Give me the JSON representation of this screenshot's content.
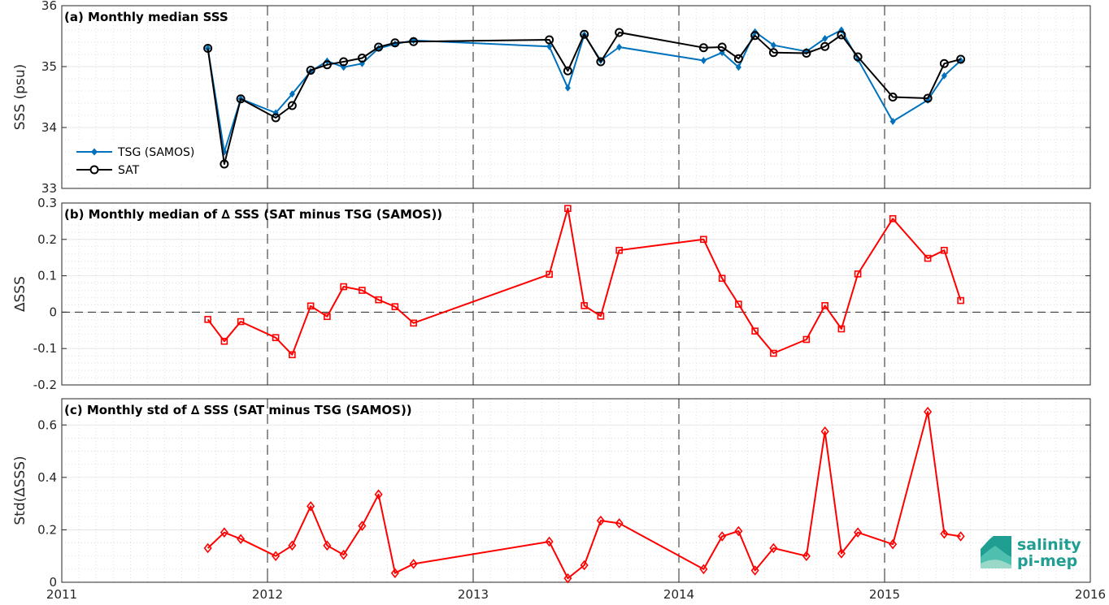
{
  "chart_data": [
    {
      "type": "line",
      "title": "(a) Monthly median SSS",
      "ylabel": "SSS (psu)",
      "xlim": [
        2011,
        2016
      ],
      "ylim": [
        33,
        36
      ],
      "yticks": [
        "33",
        "34",
        "35",
        "36"
      ],
      "grid": true,
      "legend_position": "lower-left",
      "series": [
        {
          "name": "TSG (SAMOS)",
          "color": "#0072bd",
          "marker": "diamond-filled",
          "points": [
            [
              2011.71,
              35.3
            ],
            [
              2011.79,
              33.6
            ],
            [
              2011.87,
              34.47
            ],
            [
              2012.04,
              34.24
            ],
            [
              2012.12,
              34.55
            ],
            [
              2012.21,
              34.92
            ],
            [
              2012.29,
              35.09
            ],
            [
              2012.37,
              34.99
            ],
            [
              2012.46,
              35.05
            ],
            [
              2012.54,
              35.3
            ],
            [
              2012.62,
              35.37
            ],
            [
              2012.71,
              35.43
            ],
            [
              2013.37,
              35.33
            ],
            [
              2013.46,
              34.65
            ],
            [
              2013.54,
              35.52
            ],
            [
              2013.62,
              35.1
            ],
            [
              2013.71,
              35.32
            ],
            [
              2014.12,
              35.1
            ],
            [
              2014.21,
              35.23
            ],
            [
              2014.29,
              34.99
            ],
            [
              2014.37,
              35.57
            ],
            [
              2014.46,
              35.35
            ],
            [
              2014.62,
              35.25
            ],
            [
              2014.71,
              35.46
            ],
            [
              2014.79,
              35.6
            ],
            [
              2014.87,
              35.12
            ],
            [
              2015.04,
              34.1
            ],
            [
              2015.21,
              34.45
            ],
            [
              2015.29,
              34.85
            ],
            [
              2015.37,
              35.1
            ]
          ]
        },
        {
          "name": "SAT",
          "color": "#000000",
          "marker": "circle-open",
          "points": [
            [
              2011.71,
              35.3
            ],
            [
              2011.79,
              33.4
            ],
            [
              2011.87,
              34.47
            ],
            [
              2012.04,
              34.16
            ],
            [
              2012.12,
              34.36
            ],
            [
              2012.21,
              34.94
            ],
            [
              2012.29,
              35.03
            ],
            [
              2012.37,
              35.08
            ],
            [
              2012.46,
              35.14
            ],
            [
              2012.54,
              35.32
            ],
            [
              2012.62,
              35.39
            ],
            [
              2012.71,
              35.41
            ],
            [
              2013.37,
              35.44
            ],
            [
              2013.46,
              34.93
            ],
            [
              2013.54,
              35.53
            ],
            [
              2013.62,
              35.08
            ],
            [
              2013.71,
              35.56
            ],
            [
              2014.12,
              35.31
            ],
            [
              2014.21,
              35.32
            ],
            [
              2014.29,
              35.13
            ],
            [
              2014.37,
              35.51
            ],
            [
              2014.46,
              35.23
            ],
            [
              2014.62,
              35.22
            ],
            [
              2014.71,
              35.33
            ],
            [
              2014.79,
              35.52
            ],
            [
              2014.87,
              35.16
            ],
            [
              2015.04,
              34.5
            ],
            [
              2015.21,
              34.48
            ],
            [
              2015.29,
              35.05
            ],
            [
              2015.37,
              35.12
            ]
          ]
        }
      ]
    },
    {
      "type": "line",
      "title": "(b) Monthly median of ∆ SSS (SAT minus TSG (SAMOS))",
      "ylabel": "∆SSS",
      "xlim": [
        2011,
        2016
      ],
      "ylim": [
        -0.2,
        0.3
      ],
      "yticks": [
        "-0.2",
        "-0.1",
        "0",
        "0.1",
        "0.2",
        "0.3"
      ],
      "grid": true,
      "reference_line": 0,
      "series": [
        {
          "color": "#ff0000",
          "marker": "square-open",
          "points": [
            [
              2011.71,
              -0.02
            ],
            [
              2011.79,
              -0.08
            ],
            [
              2011.87,
              -0.026
            ],
            [
              2012.04,
              -0.07
            ],
            [
              2012.12,
              -0.117
            ],
            [
              2012.21,
              0.017
            ],
            [
              2012.29,
              -0.012
            ],
            [
              2012.37,
              0.07
            ],
            [
              2012.46,
              0.06
            ],
            [
              2012.54,
              0.034
            ],
            [
              2012.62,
              0.015
            ],
            [
              2012.71,
              -0.03
            ],
            [
              2013.37,
              0.104
            ],
            [
              2013.46,
              0.285
            ],
            [
              2013.54,
              0.018
            ],
            [
              2013.62,
              -0.011
            ],
            [
              2013.71,
              0.17
            ],
            [
              2014.12,
              0.2
            ],
            [
              2014.21,
              0.093
            ],
            [
              2014.29,
              0.022
            ],
            [
              2014.37,
              -0.052
            ],
            [
              2014.46,
              -0.113
            ],
            [
              2014.62,
              -0.075
            ],
            [
              2014.71,
              0.018
            ],
            [
              2014.79,
              -0.046
            ],
            [
              2014.87,
              0.105
            ],
            [
              2015.04,
              0.257
            ],
            [
              2015.21,
              0.148
            ],
            [
              2015.29,
              0.17
            ],
            [
              2015.37,
              0.032
            ]
          ]
        }
      ]
    },
    {
      "type": "line",
      "title": "(c) Monthly std of ∆ SSS (SAT minus TSG (SAMOS))",
      "ylabel": "Std(∆SSS)",
      "xlabel": "",
      "xlim": [
        2011,
        2016
      ],
      "ylim": [
        0,
        0.7
      ],
      "yticks": [
        "0",
        "0.2",
        "0.4",
        "0.6"
      ],
      "xticks": [
        "2011",
        "2012",
        "2013",
        "2014",
        "2015",
        "2016"
      ],
      "grid": true,
      "series": [
        {
          "color": "#ff0000",
          "marker": "diamond-open",
          "points": [
            [
              2011.71,
              0.13
            ],
            [
              2011.79,
              0.19
            ],
            [
              2011.87,
              0.165
            ],
            [
              2012.04,
              0.1
            ],
            [
              2012.12,
              0.14
            ],
            [
              2012.21,
              0.29
            ],
            [
              2012.29,
              0.14
            ],
            [
              2012.37,
              0.105
            ],
            [
              2012.46,
              0.215
            ],
            [
              2012.54,
              0.335
            ],
            [
              2012.62,
              0.035
            ],
            [
              2012.71,
              0.07
            ],
            [
              2013.37,
              0.155
            ],
            [
              2013.46,
              0.015
            ],
            [
              2013.54,
              0.065
            ],
            [
              2013.62,
              0.235
            ],
            [
              2013.71,
              0.225
            ],
            [
              2014.12,
              0.05
            ],
            [
              2014.21,
              0.175
            ],
            [
              2014.29,
              0.195
            ],
            [
              2014.37,
              0.045
            ],
            [
              2014.46,
              0.13
            ],
            [
              2014.62,
              0.1
            ],
            [
              2014.71,
              0.575
            ],
            [
              2014.79,
              0.11
            ],
            [
              2014.87,
              0.19
            ],
            [
              2015.04,
              0.145
            ],
            [
              2015.21,
              0.65
            ],
            [
              2015.29,
              0.185
            ],
            [
              2015.37,
              0.175
            ]
          ]
        }
      ]
    }
  ],
  "logo": {
    "line1": "salinity",
    "line2": "pi-mep",
    "color": "#1f9e91"
  }
}
